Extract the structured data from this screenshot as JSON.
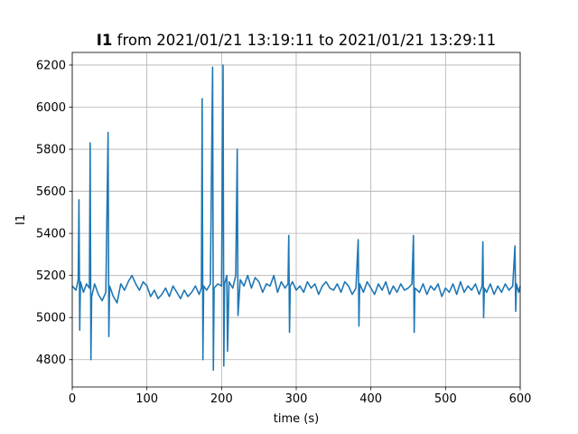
{
  "chart_data": {
    "type": "line",
    "title": {
      "bold": "I1",
      "rest": " from 2021/01/21 13:19:11 to 2021/01/21 13:29:11"
    },
    "xlabel": "time (s)",
    "ylabel": "I1",
    "xlim": [
      0,
      600
    ],
    "ylim": [
      4670,
      6260
    ],
    "xticks": [
      0,
      100,
      200,
      300,
      400,
      500,
      600
    ],
    "yticks": [
      4800,
      5000,
      5200,
      5400,
      5600,
      5800,
      6000,
      6200
    ],
    "grid": true,
    "line_color": "#1f77b4",
    "series": [
      {
        "values": [
          [
            0,
            5150
          ],
          [
            5,
            5130
          ],
          [
            8,
            5180
          ],
          [
            9,
            5560
          ],
          [
            10,
            4940
          ],
          [
            11,
            5170
          ],
          [
            15,
            5120
          ],
          [
            19,
            5160
          ],
          [
            23,
            5140
          ],
          [
            24,
            5830
          ],
          [
            25,
            4800
          ],
          [
            26,
            5100
          ],
          [
            30,
            5160
          ],
          [
            35,
            5110
          ],
          [
            40,
            5080
          ],
          [
            45,
            5120
          ],
          [
            48,
            5880
          ],
          [
            49,
            4910
          ],
          [
            50,
            5150
          ],
          [
            55,
            5100
          ],
          [
            60,
            5070
          ],
          [
            65,
            5160
          ],
          [
            70,
            5130
          ],
          [
            75,
            5170
          ],
          [
            80,
            5200
          ],
          [
            85,
            5160
          ],
          [
            90,
            5130
          ],
          [
            95,
            5170
          ],
          [
            100,
            5150
          ],
          [
            105,
            5100
          ],
          [
            110,
            5130
          ],
          [
            115,
            5090
          ],
          [
            120,
            5110
          ],
          [
            125,
            5140
          ],
          [
            130,
            5100
          ],
          [
            135,
            5150
          ],
          [
            140,
            5120
          ],
          [
            145,
            5090
          ],
          [
            150,
            5130
          ],
          [
            155,
            5100
          ],
          [
            160,
            5120
          ],
          [
            165,
            5150
          ],
          [
            170,
            5110
          ],
          [
            173,
            5140
          ],
          [
            174,
            6040
          ],
          [
            175,
            4800
          ],
          [
            176,
            5150
          ],
          [
            180,
            5130
          ],
          [
            185,
            5160
          ],
          [
            188,
            6190
          ],
          [
            189,
            4750
          ],
          [
            190,
            5140
          ],
          [
            195,
            5160
          ],
          [
            200,
            5150
          ],
          [
            202,
            6200
          ],
          [
            203,
            4770
          ],
          [
            204,
            5160
          ],
          [
            207,
            5200
          ],
          [
            208,
            4840
          ],
          [
            210,
            5170
          ],
          [
            215,
            5140
          ],
          [
            219,
            5200
          ],
          [
            221,
            5800
          ],
          [
            222,
            5010
          ],
          [
            225,
            5180
          ],
          [
            230,
            5150
          ],
          [
            235,
            5200
          ],
          [
            240,
            5140
          ],
          [
            245,
            5190
          ],
          [
            250,
            5170
          ],
          [
            255,
            5120
          ],
          [
            260,
            5160
          ],
          [
            265,
            5150
          ],
          [
            270,
            5200
          ],
          [
            275,
            5120
          ],
          [
            280,
            5170
          ],
          [
            285,
            5140
          ],
          [
            289,
            5160
          ],
          [
            290,
            5390
          ],
          [
            291,
            4930
          ],
          [
            292,
            5150
          ],
          [
            295,
            5170
          ],
          [
            300,
            5130
          ],
          [
            305,
            5150
          ],
          [
            310,
            5120
          ],
          [
            315,
            5170
          ],
          [
            320,
            5140
          ],
          [
            325,
            5160
          ],
          [
            330,
            5110
          ],
          [
            335,
            5150
          ],
          [
            340,
            5170
          ],
          [
            345,
            5140
          ],
          [
            350,
            5130
          ],
          [
            355,
            5160
          ],
          [
            360,
            5120
          ],
          [
            365,
            5170
          ],
          [
            370,
            5150
          ],
          [
            375,
            5110
          ],
          [
            380,
            5140
          ],
          [
            383,
            5370
          ],
          [
            384,
            4960
          ],
          [
            385,
            5160
          ],
          [
            390,
            5120
          ],
          [
            395,
            5170
          ],
          [
            400,
            5140
          ],
          [
            405,
            5110
          ],
          [
            410,
            5160
          ],
          [
            415,
            5130
          ],
          [
            420,
            5170
          ],
          [
            425,
            5110
          ],
          [
            430,
            5150
          ],
          [
            435,
            5120
          ],
          [
            440,
            5160
          ],
          [
            445,
            5130
          ],
          [
            450,
            5140
          ],
          [
            455,
            5160
          ],
          [
            457,
            5390
          ],
          [
            458,
            4930
          ],
          [
            459,
            5140
          ],
          [
            465,
            5120
          ],
          [
            470,
            5160
          ],
          [
            475,
            5110
          ],
          [
            480,
            5150
          ],
          [
            485,
            5130
          ],
          [
            490,
            5160
          ],
          [
            495,
            5100
          ],
          [
            500,
            5140
          ],
          [
            505,
            5120
          ],
          [
            510,
            5160
          ],
          [
            515,
            5110
          ],
          [
            520,
            5170
          ],
          [
            525,
            5120
          ],
          [
            530,
            5150
          ],
          [
            535,
            5130
          ],
          [
            540,
            5160
          ],
          [
            545,
            5110
          ],
          [
            549,
            5150
          ],
          [
            550,
            5360
          ],
          [
            551,
            5000
          ],
          [
            552,
            5140
          ],
          [
            555,
            5120
          ],
          [
            560,
            5160
          ],
          [
            565,
            5110
          ],
          [
            570,
            5150
          ],
          [
            575,
            5120
          ],
          [
            580,
            5160
          ],
          [
            585,
            5130
          ],
          [
            590,
            5150
          ],
          [
            593,
            5340
          ],
          [
            594,
            5030
          ],
          [
            595,
            5160
          ],
          [
            598,
            5120
          ],
          [
            600,
            5150
          ]
        ]
      }
    ]
  }
}
